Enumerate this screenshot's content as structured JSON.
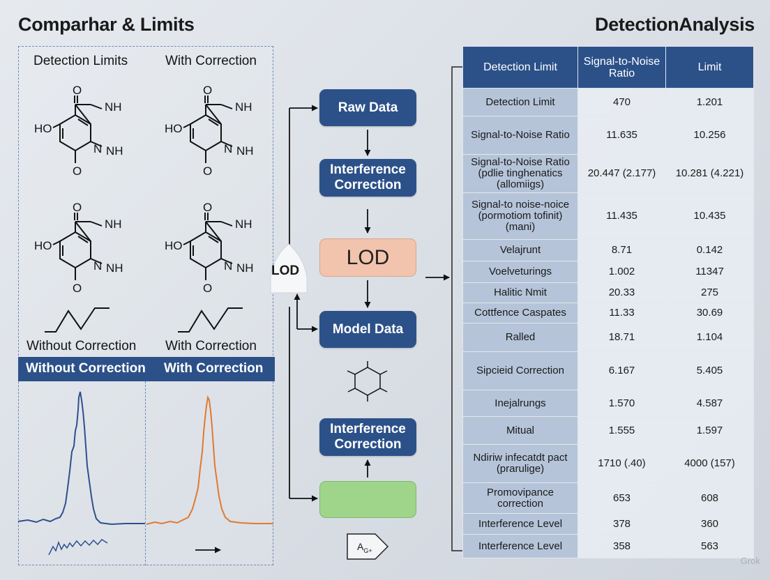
{
  "header": {
    "left_title": "Comparhar &  Limits",
    "right_title": "DetectionAnalysis"
  },
  "left_panel": {
    "col1_label": "Detection Limits",
    "col2_label": "With Correction",
    "bottom_label_left": "Without Correction",
    "bottom_label_right": "With Correction",
    "bar_label_left": "Without Correction",
    "bar_label_right": "With Correction",
    "atom_labels": {
      "oxygen": "O",
      "hydroxyl": "HO",
      "amine": "NH",
      "nitrogen": "N"
    },
    "colors": {
      "left_spectrum": "#2f4f8f",
      "right_spectrum": "#e07a2e"
    }
  },
  "flow": {
    "raw_data": "Raw Data",
    "interference_top_line1": "Interference",
    "interference_top_line2": "Correction",
    "lod_label": "LOD",
    "lod_tag": "LOD",
    "model_data": "Model Data",
    "interference_bottom_line1": "Interference",
    "interference_bottom_line2": "Correction",
    "bottom_glyph": "A",
    "bottom_glyph_sub": "G+"
  },
  "table": {
    "headers": [
      "Detection Limit",
      "Signal-to-Noise Ratio",
      "Limit"
    ],
    "rows": [
      [
        "Detection Limit",
        "470",
        "1.201"
      ],
      [
        "Signal-to-Noise Ratio",
        "11.635",
        "10.256"
      ],
      [
        "Signal-to-Noise Ratio (pdlie tinghenatics (allomiigs)",
        "20.447 (2.177)",
        "10.281 (4.221)"
      ],
      [
        "Signal-to noise-noice (pormotiom tofinit) (mani)",
        "11.435",
        "10.435"
      ],
      [
        "Velajrunt",
        "8.71",
        "0.142"
      ],
      [
        "Voelveturings",
        "1.002",
        "11347"
      ],
      [
        "Halitic Nmit",
        "20.33",
        "275"
      ],
      [
        "Cottfence Caspates",
        "11.33",
        "30.69"
      ],
      [
        "Ralled",
        "18.71",
        "1.104"
      ],
      [
        "Sipcieid Correction",
        "6.167",
        "5.405"
      ],
      [
        "Inejalrungs",
        "1.570",
        "4.587"
      ],
      [
        "Mitual",
        "1.555",
        "1.597"
      ],
      [
        "Ndiriw infecatdt pact (prarulige)",
        "1710 (.40)",
        "4000 (157)"
      ],
      [
        "Promovipance correction",
        "653",
        "608"
      ],
      [
        "Interference Level",
        "378",
        "360"
      ],
      [
        "Interference Level",
        "358",
        "563"
      ]
    ]
  },
  "watermark": "Grok"
}
